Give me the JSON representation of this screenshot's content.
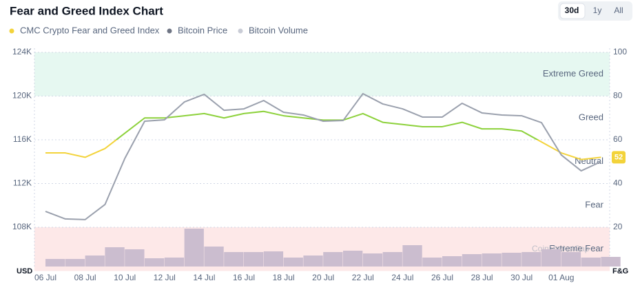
{
  "chart_data": {
    "type": "line",
    "title": "Fear and Greed Index Chart",
    "ranges": [
      "30d",
      "1y",
      "All"
    ],
    "active_range": "30d",
    "y_label": "USD",
    "y2_label": "F&G",
    "watermark": "CoinMarketCap",
    "categories": [
      "06 Jul",
      null,
      "08 Jul",
      null,
      "10 Jul",
      null,
      "12 Jul",
      null,
      "14 Jul",
      null,
      "16 Jul",
      null,
      "18 Jul",
      null,
      "20 Jul",
      null,
      "22 Jul",
      null,
      "24 Jul",
      null,
      "26 Jul",
      null,
      "28 Jul",
      null,
      "30 Jul",
      null,
      "01 Aug",
      null,
      null
    ],
    "ylim": [
      104000,
      124000
    ],
    "yticks": [
      {
        "value": 108000,
        "label": "108K"
      },
      {
        "value": 112000,
        "label": "112K"
      },
      {
        "value": 116000,
        "label": "116K"
      },
      {
        "value": 120000,
        "label": "120K"
      },
      {
        "value": 124000,
        "label": "124K"
      }
    ],
    "y2lim": [
      0,
      100
    ],
    "y2ticks": [
      20,
      40,
      60,
      80,
      100
    ],
    "grid": true,
    "zones": [
      {
        "label": "Extreme Fear",
        "from": 0,
        "to": 20,
        "color": "#fde8e8"
      },
      {
        "label": "Fear",
        "from": 20,
        "to": 40,
        "color": "#ffffff"
      },
      {
        "label": "Neutral",
        "from": 40,
        "to": 60,
        "color": "#ffffff"
      },
      {
        "label": "Greed",
        "from": 60,
        "to": 80,
        "color": "#ffffff"
      },
      {
        "label": "Extreme Greed",
        "from": 80,
        "to": 100,
        "color": "#e6f8f1"
      }
    ],
    "series": [
      {
        "name": "CMC Crypto Fear and Greed Index",
        "color": "#f3d33a",
        "high_color": "#8cd13a",
        "axis": "y2",
        "values": [
          54,
          54,
          52,
          56,
          63,
          70,
          70,
          71,
          72,
          70,
          72,
          73,
          71,
          70,
          69,
          69,
          72,
          68,
          67,
          66,
          66,
          68,
          65,
          65,
          64,
          59,
          54,
          51,
          52
        ]
      },
      {
        "name": "Bitcoin Price",
        "color": "#6f7584",
        "line_color": "#9aa0ad",
        "axis": "y",
        "values": [
          109450,
          108760,
          108700,
          110080,
          114300,
          117700,
          117830,
          119460,
          120160,
          118700,
          118830,
          119590,
          118520,
          118270,
          117700,
          117760,
          120220,
          119280,
          118830,
          118080,
          118080,
          119340,
          118460,
          118270,
          118200,
          117570,
          114610,
          113160,
          114000
        ]
      },
      {
        "name": "Bitcoin Volume",
        "color": "#c9ccd6",
        "bar_color": "#cbbdcf",
        "type": "bar",
        "values": [
          11,
          11,
          16,
          28,
          25,
          12,
          13,
          55,
          29,
          21,
          21,
          22,
          13,
          16,
          21,
          23,
          19,
          21,
          31,
          13,
          15,
          18,
          19,
          20,
          21,
          25,
          21,
          13,
          14
        ]
      }
    ]
  }
}
